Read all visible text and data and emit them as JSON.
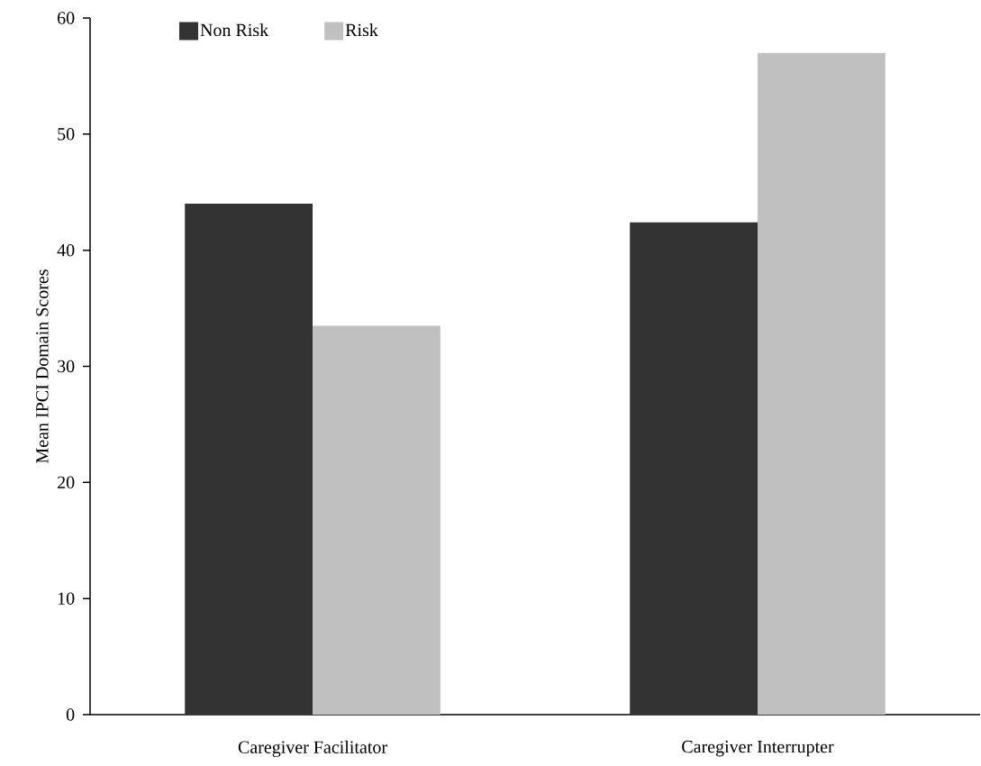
{
  "chart_data": {
    "type": "bar",
    "ylabel": "Mean IPCI Domain Scores",
    "categories": [
      "Caregiver Facilitator",
      "Caregiver Interrupter"
    ],
    "series": [
      {
        "name": "Non Risk",
        "color": "#333333",
        "values": [
          44.0,
          42.4
        ]
      },
      {
        "name": "Risk",
        "color": "#c0c0c0",
        "values": [
          33.5,
          57.0
        ]
      }
    ],
    "ylim": [
      0,
      60
    ],
    "yticks": [
      0,
      10,
      20,
      30,
      40,
      50,
      60
    ],
    "legend": "top left",
    "grid": false
  }
}
